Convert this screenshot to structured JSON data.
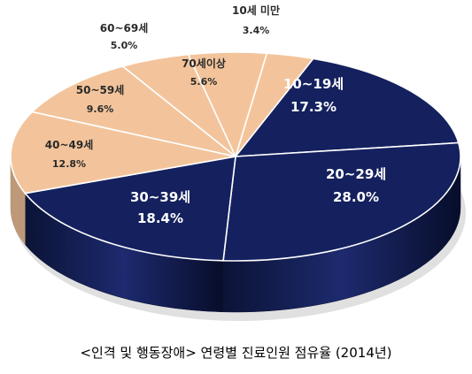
{
  "chart_data": {
    "type": "pie",
    "title": "<인격 및 행동장애> 연령별 진료인원 점유율 (2014년)",
    "slices": [
      {
        "label": "10세 미만",
        "value": 3.4,
        "value_text": "3.4%",
        "color": "#f3c49b"
      },
      {
        "label": "10~19세",
        "value": 17.3,
        "value_text": "17.3%",
        "color": "#14215e"
      },
      {
        "label": "20~29세",
        "value": 28.0,
        "value_text": "28.0%",
        "color": "#14215e"
      },
      {
        "label": "30~39세",
        "value": 18.4,
        "value_text": "18.4%",
        "color": "#14215e"
      },
      {
        "label": "40~49세",
        "value": 12.8,
        "value_text": "12.8%",
        "color": "#f3c49b"
      },
      {
        "label": "50~59세",
        "value": 9.6,
        "value_text": "9.6%",
        "color": "#f3c49b"
      },
      {
        "label": "60~69세",
        "value": 5.0,
        "value_text": "5.0%",
        "color": "#f3c49b"
      },
      {
        "label": "70세이상",
        "value": 5.6,
        "value_text": "5.6%",
        "color": "#f3c49b"
      }
    ],
    "legend": "none"
  }
}
